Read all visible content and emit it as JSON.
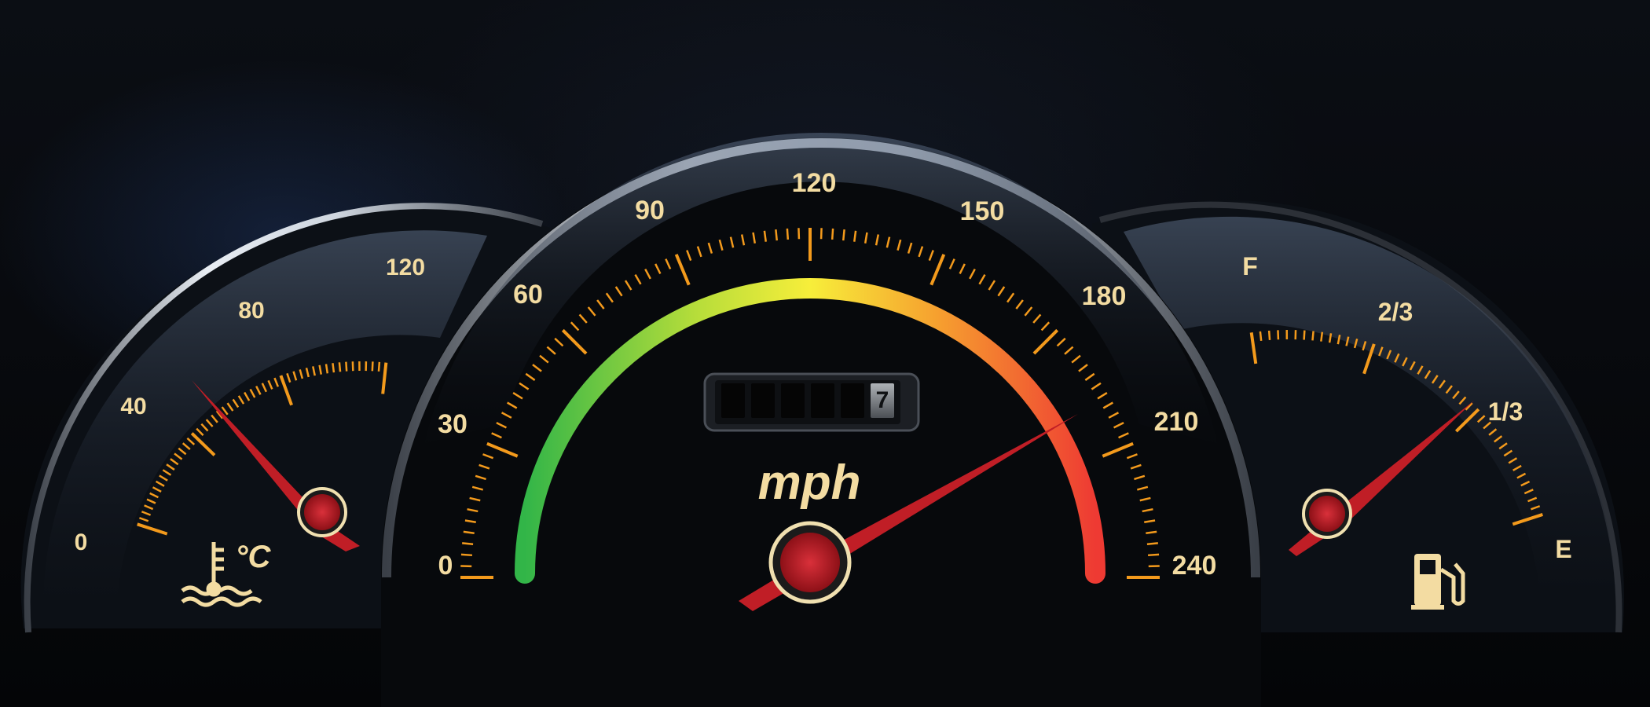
{
  "colors": {
    "tick": "#f39a1c",
    "label": "#f3dca2",
    "needle": "#c01e26",
    "bezel": "#d7dde6"
  },
  "temperature_gauge": {
    "ticks": [
      "0",
      "40",
      "80",
      "120"
    ],
    "unit": "°C",
    "icon": "coolant-temperature-icon"
  },
  "speedometer": {
    "ticks": [
      "0",
      "30",
      "60",
      "90",
      "120",
      "150",
      "180",
      "210",
      "240"
    ],
    "unit": "mph",
    "odometer": [
      "",
      "",
      "",
      "",
      "",
      "7"
    ]
  },
  "fuel_gauge": {
    "ticks": [
      "F",
      "2/3",
      "1/3",
      "E"
    ],
    "icon": "fuel-pump-icon"
  }
}
